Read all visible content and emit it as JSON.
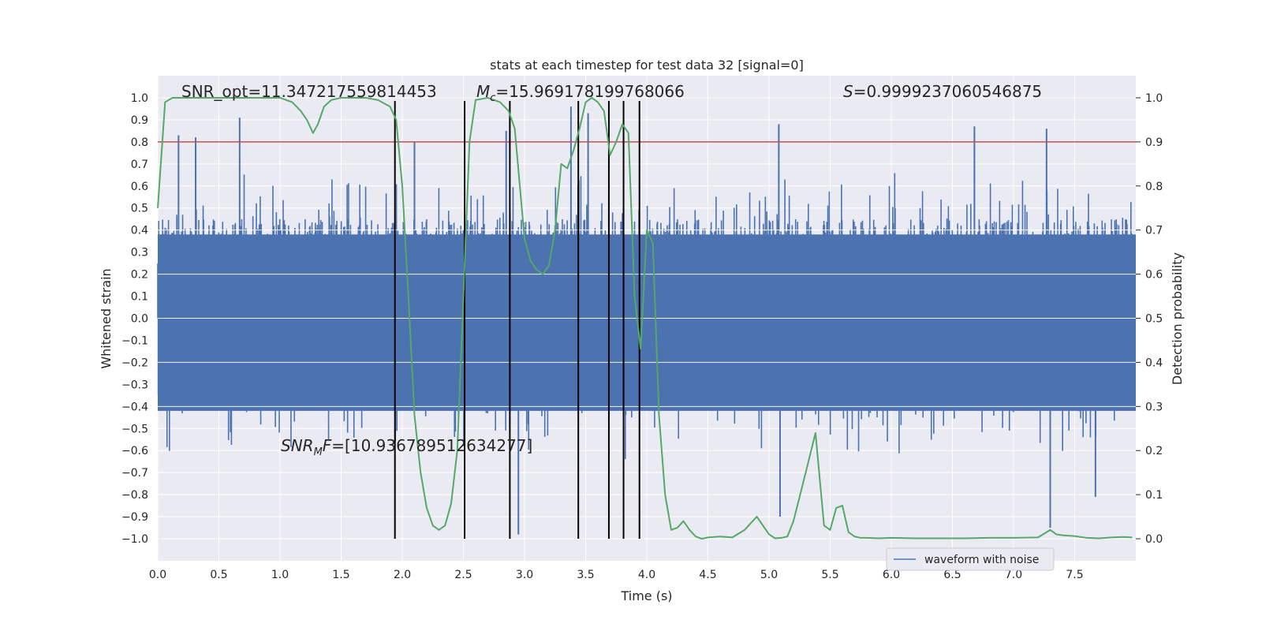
{
  "chart_data": {
    "type": "line",
    "title": "stats at each timestep for test data 32 [signal=0]",
    "xlabel": "Time (s)",
    "ylabel": "Whitened strain",
    "y2label": "Detection probability",
    "xlim": [
      0.0,
      8.0
    ],
    "ylim": [
      -1.1,
      1.1
    ],
    "y2lim": [
      -0.05,
      1.05
    ],
    "x_ticks": [
      0.0,
      0.5,
      1.0,
      1.5,
      2.0,
      2.5,
      3.0,
      3.5,
      4.0,
      4.5,
      5.0,
      5.5,
      6.0,
      6.5,
      7.0,
      7.5
    ],
    "x_tick_labels": [
      "0.0",
      "0.5",
      "1.0",
      "1.5",
      "2.0",
      "2.5",
      "3.0",
      "3.5",
      "4.0",
      "4.5",
      "5.0",
      "5.5",
      "6.0",
      "6.5",
      "7.0",
      "7.5"
    ],
    "y_ticks": [
      1.0,
      0.9,
      0.8,
      0.7,
      0.6,
      0.5,
      0.4,
      0.3,
      0.2,
      0.1,
      0.0,
      -0.1,
      -0.2,
      -0.3,
      -0.4,
      -0.5,
      -0.6,
      -0.7,
      -0.8,
      -0.9,
      -1.0
    ],
    "y_tick_labels": [
      "1.0",
      "0.9",
      "0.8",
      "0.7",
      "0.6",
      "0.5",
      "0.4",
      "0.3",
      "0.2",
      "0.1",
      "0.0",
      "−0.1",
      "−0.2",
      "−0.3",
      "−0.4",
      "−0.5",
      "−0.6",
      "−0.7",
      "−0.8",
      "−0.9",
      "−1.0"
    ],
    "y2_ticks": [
      1.0,
      0.9,
      0.8,
      0.7,
      0.6,
      0.5,
      0.4,
      0.3,
      0.2,
      0.1,
      0.0
    ],
    "y2_tick_labels": [
      "1.0",
      "0.9",
      "0.8",
      "0.7",
      "0.6",
      "0.5",
      "0.4",
      "0.3",
      "0.2",
      "0.1",
      "0.0"
    ],
    "grid": true,
    "threshold": 0.9,
    "threshold_color": "#c44e52",
    "waveform_color": "#4c72b0",
    "probability_color": "#55a868",
    "vline_color": "#000000",
    "vlines": [
      1.94,
      2.51,
      2.88,
      3.44,
      3.69,
      3.81,
      3.94
    ],
    "vline_range": [
      -1.0,
      1.0
    ],
    "annotations": {
      "snr_opt": "SNR_opt=11.347217559814453",
      "mc_prefix": "M",
      "mc_sub": "c",
      "mc_value": "=15.969178199768066",
      "s_prefix": "S",
      "s_value": "=0.9999237060546875",
      "snr_mf_prefix": "SNR",
      "snr_mf_sub": "M",
      "snr_mf_suffix": "F",
      "snr_mf_value": "=[10.936789512634277]"
    },
    "series": [
      {
        "name": "waveform with noise",
        "kind": "noise",
        "envelope_pos": [
          0.45,
          0.65
        ],
        "envelope_neg": [
          -0.4,
          -0.6
        ],
        "notable_peaks": [
          {
            "x": 0.17,
            "y": 0.83
          },
          {
            "x": 0.31,
            "y": 0.82
          },
          {
            "x": 0.67,
            "y": 0.91
          },
          {
            "x": 2.1,
            "y": 0.8
          },
          {
            "x": 2.85,
            "y": 0.85
          },
          {
            "x": 3.38,
            "y": 0.96
          },
          {
            "x": 3.52,
            "y": 0.93
          },
          {
            "x": 5.08,
            "y": 0.88
          },
          {
            "x": 6.68,
            "y": 0.87
          },
          {
            "x": 7.27,
            "y": 0.86
          },
          {
            "x": 5.09,
            "y": -0.9
          },
          {
            "x": 7.3,
            "y": -0.95
          },
          {
            "x": 2.95,
            "y": -0.98
          },
          {
            "x": 7.67,
            "y": -0.81
          }
        ]
      },
      {
        "name": "detection probability",
        "axis": "y2",
        "x": [
          0.0,
          0.06,
          0.12,
          0.2,
          0.3,
          0.4,
          0.5,
          0.6,
          0.7,
          0.8,
          0.9,
          1.0,
          1.1,
          1.17,
          1.22,
          1.27,
          1.31,
          1.36,
          1.42,
          1.5,
          1.6,
          1.7,
          1.8,
          1.9,
          1.95,
          2.0,
          2.05,
          2.1,
          2.15,
          2.2,
          2.25,
          2.3,
          2.35,
          2.4,
          2.45,
          2.5,
          2.55,
          2.6,
          2.7,
          2.8,
          2.87,
          2.92,
          3.0,
          3.05,
          3.1,
          3.15,
          3.2,
          3.25,
          3.3,
          3.35,
          3.4,
          3.45,
          3.5,
          3.55,
          3.6,
          3.65,
          3.7,
          3.75,
          3.8,
          3.85,
          3.9,
          3.95,
          4.0,
          4.05,
          4.1,
          4.15,
          4.2,
          4.25,
          4.3,
          4.35,
          4.4,
          4.45,
          4.5,
          4.55,
          4.6,
          4.7,
          4.8,
          4.9,
          5.0,
          5.05,
          5.1,
          5.15,
          5.2,
          5.3,
          5.38,
          5.45,
          5.5,
          5.55,
          5.6,
          5.65,
          5.7,
          5.75,
          5.8,
          5.9,
          6.0,
          6.2,
          6.4,
          6.6,
          6.8,
          7.0,
          7.2,
          7.3,
          7.35,
          7.4,
          7.5,
          7.6,
          7.7,
          7.8,
          7.9,
          7.97
        ],
        "y": [
          0.75,
          0.99,
          1.0,
          1.0,
          1.0,
          1.0,
          1.0,
          1.0,
          1.0,
          1.0,
          1.0,
          1.0,
          0.99,
          0.97,
          0.95,
          0.92,
          0.94,
          0.98,
          0.995,
          1.0,
          1.0,
          1.0,
          0.995,
          0.98,
          0.95,
          0.8,
          0.55,
          0.28,
          0.15,
          0.07,
          0.03,
          0.02,
          0.03,
          0.08,
          0.2,
          0.55,
          0.9,
          0.995,
          1.0,
          0.99,
          0.97,
          0.93,
          0.68,
          0.63,
          0.61,
          0.6,
          0.62,
          0.7,
          0.85,
          0.84,
          0.88,
          0.93,
          0.99,
          1.0,
          0.99,
          0.97,
          0.87,
          0.9,
          0.94,
          0.92,
          0.55,
          0.43,
          0.7,
          0.67,
          0.28,
          0.1,
          0.02,
          0.025,
          0.04,
          0.02,
          0.005,
          0.0,
          0.003,
          0.004,
          0.005,
          0.003,
          0.02,
          0.05,
          0.01,
          0.001,
          0.002,
          0.005,
          0.04,
          0.15,
          0.24,
          0.03,
          0.02,
          0.07,
          0.075,
          0.015,
          0.005,
          0.002,
          0.002,
          0.001,
          0.002,
          0.001,
          0.001,
          0.001,
          0.002,
          0.002,
          0.003,
          0.02,
          0.01,
          0.008,
          0.006,
          0.002,
          0.001,
          0.003,
          0.004,
          0.003
        ]
      }
    ],
    "legend": {
      "placement": "bottom-right",
      "entries": [
        "waveform with noise"
      ]
    }
  }
}
